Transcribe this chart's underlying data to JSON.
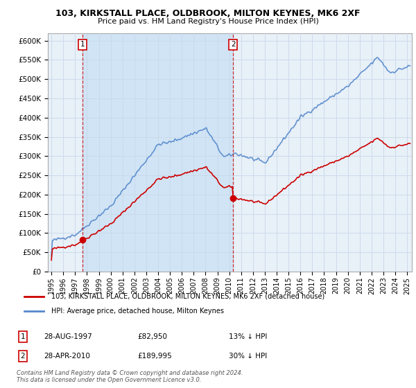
{
  "title1": "103, KIRKSTALL PLACE, OLDBROOK, MILTON KEYNES, MK6 2XF",
  "title2": "Price paid vs. HM Land Registry's House Price Index (HPI)",
  "red_line_label": "103, KIRKSTALL PLACE, OLDBROOK, MILTON KEYNES, MK6 2XF (detached house)",
  "blue_line_label": "HPI: Average price, detached house, Milton Keynes",
  "marker1_date": "28-AUG-1997",
  "marker1_price": "£82,950",
  "marker1_hpi": "13% ↓ HPI",
  "marker2_date": "28-APR-2010",
  "marker2_price": "£189,995",
  "marker2_hpi": "30% ↓ HPI",
  "footer": "Contains HM Land Registry data © Crown copyright and database right 2024.\nThis data is licensed under the Open Government Licence v3.0.",
  "ylim": [
    0,
    620000
  ],
  "yticks": [
    0,
    50000,
    100000,
    150000,
    200000,
    250000,
    300000,
    350000,
    400000,
    450000,
    500000,
    550000,
    600000
  ],
  "background_color": "#ffffff",
  "plot_bg_color": "#e8f0f8",
  "shade_color": "#d0e4f5",
  "grid_color": "#c8d8e8",
  "red_color": "#cc0000",
  "blue_color": "#5588cc",
  "sale1_year": 1997.648,
  "sale2_year": 2010.328,
  "price_sale1": 82950,
  "price_sale2": 189995
}
